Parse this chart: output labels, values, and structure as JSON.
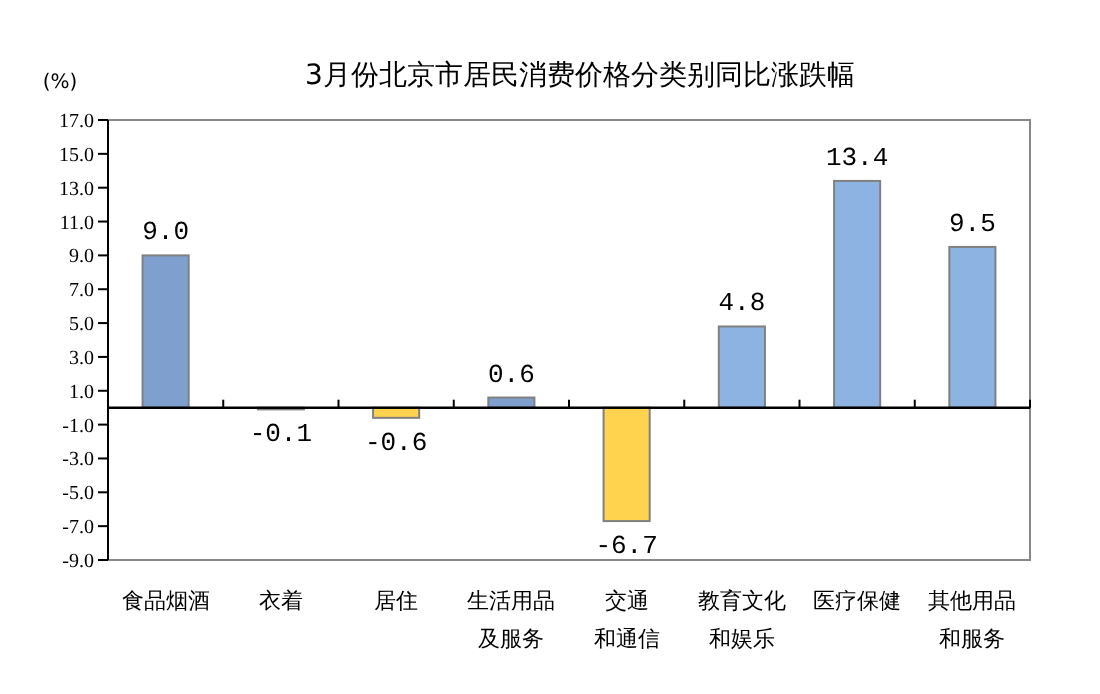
{
  "chart_data": {
    "type": "bar",
    "title": "3月份北京市居民消费价格分类别同比涨跌幅",
    "ylabel": "(%)",
    "categories": [
      "食品烟酒",
      "衣着",
      "居住",
      "生活用品及服务",
      "交通和通信",
      "教育文化和娱乐",
      "医疗保健",
      "其他用品和服务"
    ],
    "values": [
      9.0,
      -0.1,
      -0.6,
      0.6,
      -6.7,
      4.8,
      13.4,
      9.5
    ],
    "colors": [
      "#7f9fcf",
      "#ffd34d",
      "#ffd34d",
      "#7f9fcf",
      "#ffd34d",
      "#8db3e2",
      "#8db3e2",
      "#8db3e2"
    ],
    "value_labels": [
      "9.0",
      "-0.1",
      "-0.6",
      "0.6",
      "-6.7",
      "4.8",
      "13.4",
      "9.5"
    ],
    "ylim": [
      -9,
      17
    ],
    "yticks": [
      {
        "value": 17,
        "label": "17.0"
      },
      {
        "value": 15,
        "label": "15.0"
      },
      {
        "value": 13,
        "label": "13.0"
      },
      {
        "value": 11,
        "label": "11.0"
      },
      {
        "value": 9,
        "label": "9.0"
      },
      {
        "value": 7,
        "label": "7.0"
      },
      {
        "value": 5,
        "label": "5.0"
      },
      {
        "value": 3,
        "label": "3.0"
      },
      {
        "value": 1,
        "label": "1.0"
      },
      {
        "value": -1,
        "label": "-1.0"
      },
      {
        "value": -3,
        "label": "-3.0"
      },
      {
        "value": -5,
        "label": "-5.0"
      },
      {
        "value": -7,
        "label": "-7.0"
      },
      {
        "value": -9,
        "label": "-9.0"
      }
    ],
    "grid": false
  }
}
